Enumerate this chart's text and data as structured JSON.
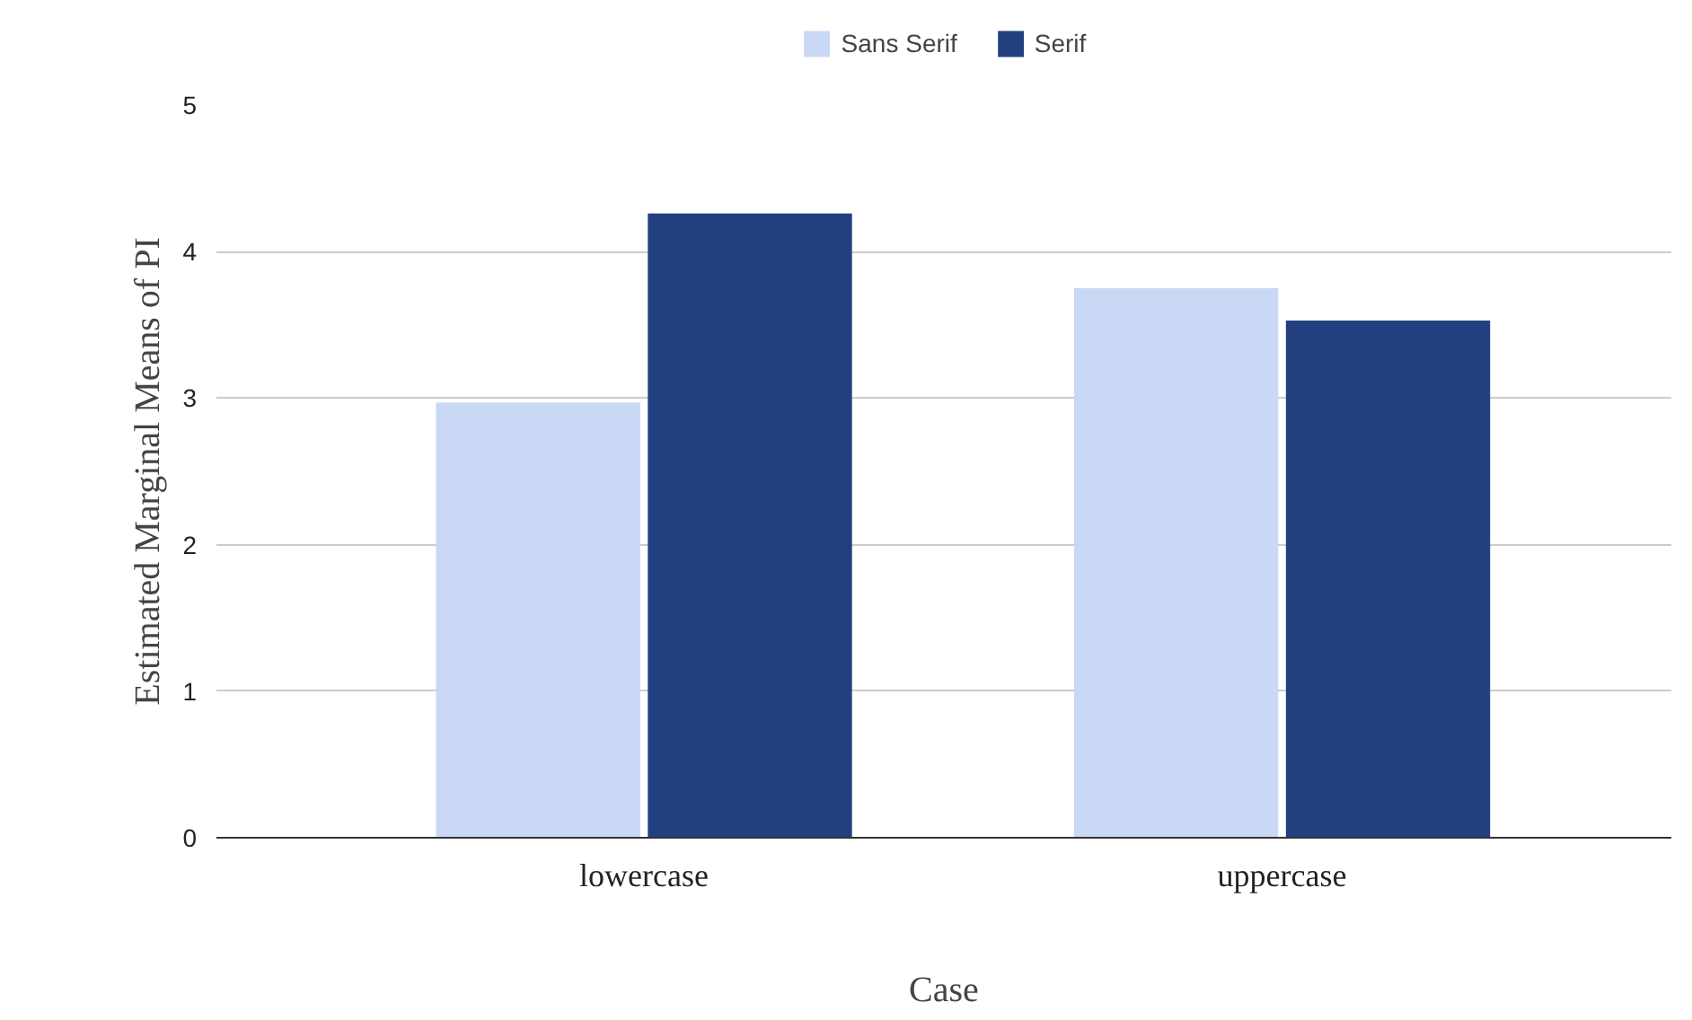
{
  "chart_data": {
    "type": "bar",
    "xlabel": "Case",
    "ylabel": "Estimated Marginal Means of PI",
    "categories": [
      "lowercase",
      "uppercase"
    ],
    "series": [
      {
        "name": "Sans Serif",
        "color": "#c9d8f5",
        "values": [
          2.97,
          3.75
        ]
      },
      {
        "name": "Serif",
        "color": "#22407f",
        "values": [
          4.26,
          3.53
        ]
      }
    ],
    "ylim": [
      0,
      5
    ],
    "yticks": [
      0,
      1,
      2,
      3,
      4,
      5
    ],
    "grid": "y",
    "legend": "top"
  }
}
